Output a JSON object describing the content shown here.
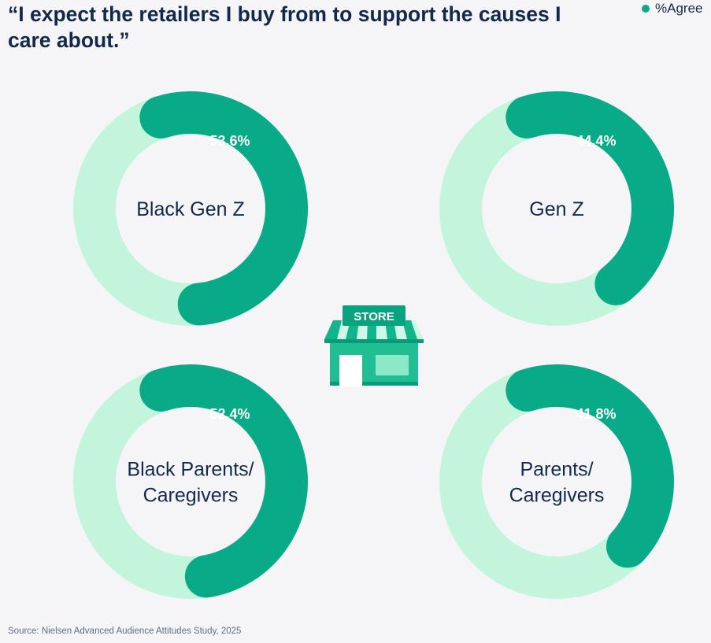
{
  "title": "“I expect the retailers I buy from to support the causes I care about.”",
  "legend": {
    "label": "%Agree"
  },
  "source": "Source: Nielsen Advanced Audience Attitudes Study, 2025",
  "store_sign": "STORE",
  "colors": {
    "agree": "#09aa87",
    "track": "#c3f5dc",
    "text": "#13294b"
  },
  "icons": {
    "store": "store-icon",
    "legend_marker": "dot-icon"
  },
  "chart_data": {
    "type": "pie",
    "series_name": "%Agree",
    "segments": [
      {
        "label": "Black Gen Z",
        "label_lines": [
          "Black Gen Z"
        ],
        "value": 53.6,
        "value_label": "53.6%"
      },
      {
        "label": "Gen Z",
        "label_lines": [
          "Gen Z"
        ],
        "value": 44.4,
        "value_label": "44.4%"
      },
      {
        "label": "Black Parents/ Caregivers",
        "label_lines": [
          "Black Parents/",
          "Caregivers"
        ],
        "value": 52.4,
        "value_label": "52.4%"
      },
      {
        "label": "Parents/ Caregivers",
        "label_lines": [
          "Parents/",
          "Caregivers"
        ],
        "value": 41.8,
        "value_label": "41.8%"
      }
    ]
  }
}
